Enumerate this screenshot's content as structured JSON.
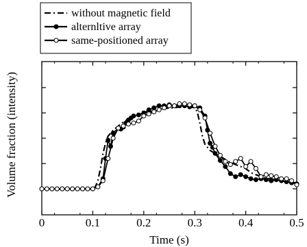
{
  "chart_data": {
    "type": "line",
    "xlabel": "Time (s)",
    "ylabel": "Volume fraction (intensity)",
    "xlim": [
      0,
      0.5
    ],
    "ylim": [
      0,
      1
    ],
    "x_ticks": [
      "0",
      "0.1",
      "0.2",
      "0.3",
      "0.4",
      "0.5"
    ],
    "y_tick_labels_shown": false,
    "grid": false,
    "legend_position": "top-left outside",
    "series": [
      {
        "name": "without magnetic field",
        "style": "dash-dot",
        "marker": "none",
        "x": [
          0,
          0.1,
          0.105,
          0.11,
          0.115,
          0.12,
          0.125,
          0.13,
          0.14,
          0.15,
          0.16,
          0.17,
          0.18,
          0.19,
          0.2,
          0.21,
          0.22,
          0.23,
          0.24,
          0.25,
          0.26,
          0.27,
          0.28,
          0.29,
          0.3,
          0.305,
          0.31,
          0.315,
          0.32,
          0.33,
          0.34,
          0.35,
          0.36,
          0.37,
          0.38,
          0.39,
          0.4,
          0.41,
          0.42,
          0.43,
          0.44,
          0.45,
          0.46,
          0.47,
          0.48,
          0.49,
          0.5
        ],
        "y": [
          0.0,
          0.0,
          0.02,
          0.08,
          0.2,
          0.35,
          0.45,
          0.52,
          0.58,
          0.62,
          0.66,
          0.69,
          0.71,
          0.73,
          0.75,
          0.76,
          0.77,
          0.78,
          0.79,
          0.8,
          0.8,
          0.81,
          0.81,
          0.81,
          0.8,
          0.76,
          0.65,
          0.52,
          0.44,
          0.38,
          0.35,
          0.32,
          0.29,
          0.26,
          0.24,
          0.22,
          0.2,
          0.16,
          0.14,
          0.12,
          0.1,
          0.1,
          0.09,
          0.08,
          0.07,
          0.06,
          0.06
        ]
      },
      {
        "name": "alternltive array",
        "style": "solid",
        "marker": "filled-circle",
        "x": [
          0,
          0.01,
          0.02,
          0.03,
          0.04,
          0.05,
          0.06,
          0.07,
          0.08,
          0.09,
          0.1,
          0.11,
          0.12,
          0.125,
          0.13,
          0.135,
          0.14,
          0.15,
          0.155,
          0.16,
          0.165,
          0.17,
          0.175,
          0.18,
          0.19,
          0.2,
          0.21,
          0.22,
          0.23,
          0.24,
          0.25,
          0.26,
          0.27,
          0.28,
          0.29,
          0.3,
          0.31,
          0.32,
          0.325,
          0.33,
          0.335,
          0.34,
          0.35,
          0.36,
          0.37,
          0.38,
          0.39,
          0.4,
          0.41,
          0.42,
          0.43,
          0.44,
          0.45,
          0.46,
          0.47,
          0.48,
          0.49,
          0.5
        ],
        "y": [
          0.0,
          0.0,
          0.0,
          0.0,
          0.0,
          0.0,
          0.0,
          0.0,
          0.0,
          0.0,
          0.0,
          0.02,
          0.1,
          0.3,
          0.48,
          0.42,
          0.55,
          0.6,
          0.59,
          0.61,
          0.65,
          0.68,
          0.7,
          0.72,
          0.73,
          0.75,
          0.78,
          0.8,
          0.82,
          0.82,
          0.83,
          0.82,
          0.82,
          0.82,
          0.81,
          0.82,
          0.8,
          0.72,
          0.58,
          0.45,
          0.41,
          0.35,
          0.28,
          0.22,
          0.15,
          0.12,
          0.14,
          0.12,
          0.1,
          0.09,
          0.1,
          0.09,
          0.08,
          0.09,
          0.08,
          0.07,
          0.06,
          0.05
        ]
      },
      {
        "name": "same-positioned array",
        "style": "solid",
        "marker": "open-circle",
        "x": [
          0,
          0.01,
          0.02,
          0.03,
          0.04,
          0.05,
          0.06,
          0.07,
          0.08,
          0.09,
          0.1,
          0.11,
          0.12,
          0.13,
          0.14,
          0.15,
          0.16,
          0.17,
          0.18,
          0.19,
          0.2,
          0.21,
          0.22,
          0.23,
          0.24,
          0.25,
          0.26,
          0.27,
          0.28,
          0.29,
          0.3,
          0.31,
          0.32,
          0.33,
          0.34,
          0.35,
          0.36,
          0.37,
          0.38,
          0.39,
          0.4,
          0.41,
          0.42,
          0.43,
          0.44,
          0.45,
          0.46,
          0.47,
          0.48,
          0.49,
          0.5
        ],
        "y": [
          0.0,
          0.0,
          0.0,
          0.0,
          0.0,
          0.0,
          0.0,
          0.0,
          0.0,
          0.0,
          0.0,
          0.02,
          0.08,
          0.3,
          0.5,
          0.6,
          0.62,
          0.64,
          0.65,
          0.67,
          0.72,
          0.74,
          0.76,
          0.78,
          0.8,
          0.82,
          0.82,
          0.84,
          0.84,
          0.83,
          0.82,
          0.78,
          0.7,
          0.55,
          0.42,
          0.33,
          0.27,
          0.24,
          0.27,
          0.3,
          0.22,
          0.27,
          0.2,
          0.12,
          0.14,
          0.13,
          0.12,
          0.1,
          0.1,
          0.08,
          0.04
        ]
      }
    ]
  }
}
